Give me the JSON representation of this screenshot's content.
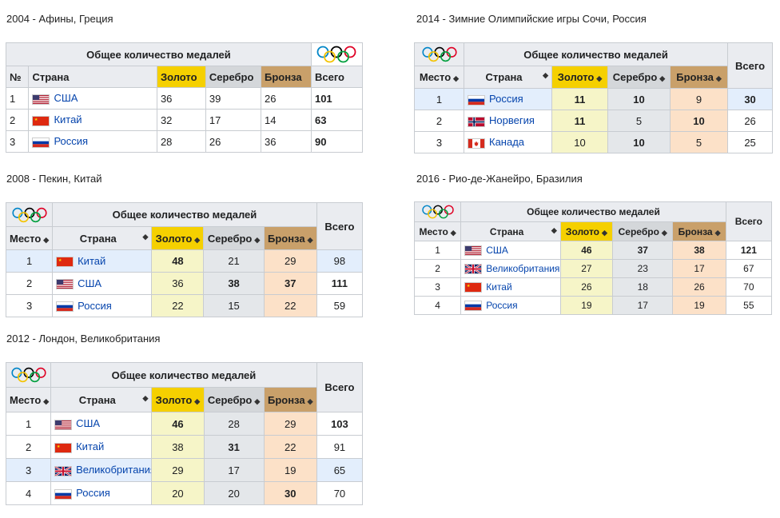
{
  "tables": [
    {
      "id": "t2004",
      "caption": "2004 - Афины, Греция",
      "header": {
        "title": "Общее количество медалей",
        "col_rank": "№",
        "col_country": "Страна",
        "col_gold": "Золото",
        "col_silver": "Серебро",
        "col_bronze": "Бронза",
        "col_total": "Всего"
      },
      "rows": [
        {
          "rank": "1",
          "country": "США",
          "flag": "usa",
          "gold": "36",
          "silver": "39",
          "bronze": "26",
          "total": "101"
        },
        {
          "rank": "2",
          "country": "Китай",
          "flag": "china",
          "gold": "32",
          "silver": "17",
          "bronze": "14",
          "total": "63"
        },
        {
          "rank": "3",
          "country": "Россия",
          "flag": "russia",
          "gold": "28",
          "silver": "26",
          "bronze": "36",
          "total": "90"
        }
      ]
    },
    {
      "id": "t2008",
      "caption": "2008 - Пекин, Китай",
      "header": {
        "title": "Общее количество медалей",
        "col_rank": "Место",
        "col_country": "Страна",
        "col_gold": "Золото",
        "col_silver": "Серебро",
        "col_bronze": "Бронза",
        "col_total": "Всего"
      },
      "rows": [
        {
          "rank": "1",
          "country": "Китай",
          "flag": "china",
          "gold": "48",
          "silver": "21",
          "bronze": "29",
          "total": "98"
        },
        {
          "rank": "2",
          "country": "США",
          "flag": "usa",
          "gold": "36",
          "silver": "38",
          "bronze": "37",
          "total": "111"
        },
        {
          "rank": "3",
          "country": "Россия",
          "flag": "russia",
          "gold": "22",
          "silver": "15",
          "bronze": "22",
          "total": "59"
        }
      ]
    },
    {
      "id": "t2012",
      "caption": "2012 - Лондон, Великобритания",
      "header": {
        "title": "Общее количество медалей",
        "col_rank": "Место",
        "col_country": "Страна",
        "col_gold": "Золото",
        "col_silver": "Серебро",
        "col_bronze": "Бронза",
        "col_total": "Всего"
      },
      "rows": [
        {
          "rank": "1",
          "country": "США",
          "flag": "usa",
          "gold": "46",
          "silver": "28",
          "bronze": "29",
          "total": "103"
        },
        {
          "rank": "2",
          "country": "Китай",
          "flag": "china",
          "gold": "38",
          "silver": "31",
          "bronze": "22",
          "total": "91"
        },
        {
          "rank": "3",
          "country": "Великобритания",
          "flag": "uk",
          "gold": "29",
          "silver": "17",
          "bronze": "19",
          "total": "65"
        },
        {
          "rank": "4",
          "country": "Россия",
          "flag": "russia",
          "gold": "20",
          "silver": "20",
          "bronze": "30",
          "total": "70"
        }
      ]
    },
    {
      "id": "t2014",
      "caption": "2014 - Зимние Олимпийские игры Сочи, Россия",
      "header": {
        "title": "Общее количество медалей",
        "col_rank": "Место",
        "col_country": "Страна",
        "col_gold": "Золото",
        "col_silver": "Серебро",
        "col_bronze": "Бронза",
        "col_total": "Всего"
      },
      "rows": [
        {
          "rank": "1",
          "country": "Россия",
          "flag": "russia",
          "gold": "11",
          "silver": "10",
          "bronze": "9",
          "total": "30"
        },
        {
          "rank": "2",
          "country": "Норвегия",
          "flag": "norway",
          "gold": "11",
          "silver": "5",
          "bronze": "10",
          "total": "26"
        },
        {
          "rank": "3",
          "country": "Канада",
          "flag": "canada",
          "gold": "10",
          "silver": "10",
          "bronze": "5",
          "total": "25"
        }
      ]
    },
    {
      "id": "t2016",
      "caption": "2016 - Рио-де-Жанейро, Бразилия",
      "header": {
        "title": "Общее количество медалей",
        "col_rank": "Место",
        "col_country": "Страна",
        "col_gold": "Золото",
        "col_silver": "Серебро",
        "col_bronze": "Бронза",
        "col_total": "Всего"
      },
      "rows": [
        {
          "rank": "1",
          "country": "США",
          "flag": "usa",
          "gold": "46",
          "silver": "37",
          "bronze": "38",
          "total": "121"
        },
        {
          "rank": "2",
          "country": "Великобритания",
          "flag": "uk",
          "gold": "27",
          "silver": "23",
          "bronze": "17",
          "total": "67"
        },
        {
          "rank": "3",
          "country": "Китай",
          "flag": "china",
          "gold": "26",
          "silver": "18",
          "bronze": "26",
          "total": "70"
        },
        {
          "rank": "4",
          "country": "Россия",
          "flag": "russia",
          "gold": "19",
          "silver": "17",
          "bronze": "19",
          "total": "55"
        }
      ]
    }
  ],
  "colors": {
    "gold_header": "#f5d000",
    "silver_header": "#d4d7da",
    "bronze_header": "#c9a06a",
    "gold_cell": "#f6f5c8",
    "silver_cell": "#e4e7ea",
    "bronze_cell": "#fce1c8",
    "highlight_row": "#e3eefc"
  },
  "icons": {
    "olympic": "olympic-rings-icon",
    "sort": "sort-arrows-icon"
  }
}
